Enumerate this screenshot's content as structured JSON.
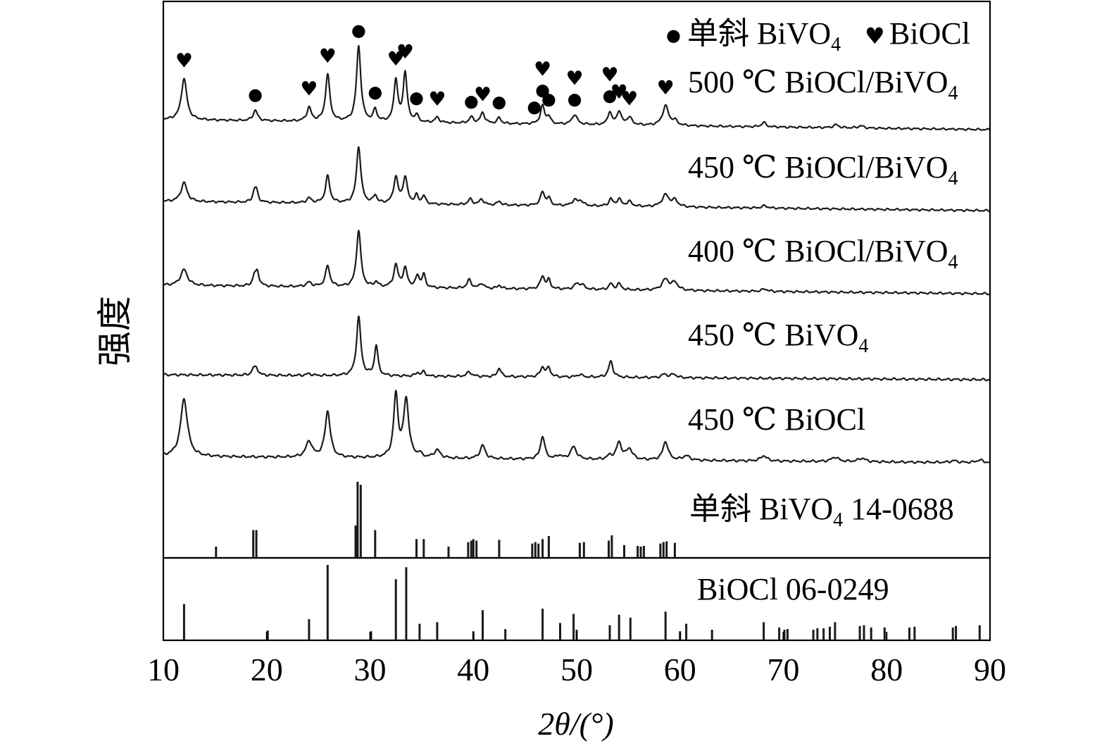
{
  "chart_data": {
    "type": "line",
    "xlabel": "2θ/(°)",
    "ylabel": "强度",
    "xlim": [
      10,
      90
    ],
    "xticks": [
      10,
      20,
      30,
      40,
      50,
      60,
      70,
      80,
      90
    ],
    "legend": {
      "position": "top-right",
      "items": [
        {
          "symbol": "●",
          "label": "单斜 BiVO₄"
        },
        {
          "symbol": "♥",
          "label": "BiOCl"
        }
      ]
    },
    "series": [
      {
        "name": "500 ℃ BiOCl/BiVO₄",
        "peaks": [
          {
            "x": 12.0,
            "y": 55,
            "w": 0.32
          },
          {
            "x": 18.9,
            "y": 14,
            "w": 0.25
          },
          {
            "x": 24.1,
            "y": 18,
            "w": 0.25
          },
          {
            "x": 25.9,
            "y": 62,
            "w": 0.25
          },
          {
            "x": 28.9,
            "y": 100,
            "w": 0.25
          },
          {
            "x": 30.5,
            "y": 16,
            "w": 0.2
          },
          {
            "x": 32.5,
            "y": 56,
            "w": 0.22
          },
          {
            "x": 33.4,
            "y": 66,
            "w": 0.22
          },
          {
            "x": 34.5,
            "y": 9,
            "w": 0.2
          },
          {
            "x": 36.5,
            "y": 7,
            "w": 0.25
          },
          {
            "x": 39.8,
            "y": 8,
            "w": 0.25
          },
          {
            "x": 40.9,
            "y": 14,
            "w": 0.25
          },
          {
            "x": 42.5,
            "y": 8,
            "w": 0.2
          },
          {
            "x": 46.7,
            "y": 24,
            "w": 0.25
          },
          {
            "x": 47.3,
            "y": 9,
            "w": 0.2
          },
          {
            "x": 49.8,
            "y": 13,
            "w": 0.3
          },
          {
            "x": 53.2,
            "y": 17,
            "w": 0.22
          },
          {
            "x": 54.1,
            "y": 18,
            "w": 0.25
          },
          {
            "x": 55.1,
            "y": 10,
            "w": 0.3
          },
          {
            "x": 58.6,
            "y": 26,
            "w": 0.35
          },
          {
            "x": 59.5,
            "y": 6,
            "w": 0.3
          },
          {
            "x": 68.1,
            "y": 6,
            "w": 0.25
          },
          {
            "x": 75.1,
            "y": 4,
            "w": 0.3
          },
          {
            "x": 77.5,
            "y": 3,
            "w": 0.3
          }
        ]
      },
      {
        "name": "450 ℃ BiOCl/BiVO₄",
        "peaks": [
          {
            "x": 12.0,
            "y": 24,
            "w": 0.35
          },
          {
            "x": 18.8,
            "y": 11,
            "w": 0.2
          },
          {
            "x": 19.0,
            "y": 13,
            "w": 0.2
          },
          {
            "x": 24.1,
            "y": 6,
            "w": 0.25
          },
          {
            "x": 25.9,
            "y": 34,
            "w": 0.25
          },
          {
            "x": 28.9,
            "y": 72,
            "w": 0.25
          },
          {
            "x": 30.5,
            "y": 10,
            "w": 0.2
          },
          {
            "x": 32.5,
            "y": 33,
            "w": 0.25
          },
          {
            "x": 33.4,
            "y": 33,
            "w": 0.25
          },
          {
            "x": 34.5,
            "y": 10,
            "w": 0.2
          },
          {
            "x": 35.2,
            "y": 10,
            "w": 0.2
          },
          {
            "x": 39.7,
            "y": 7,
            "w": 0.25
          },
          {
            "x": 40.8,
            "y": 7,
            "w": 0.25
          },
          {
            "x": 42.5,
            "y": 5,
            "w": 0.2
          },
          {
            "x": 46.7,
            "y": 17,
            "w": 0.25
          },
          {
            "x": 47.3,
            "y": 9,
            "w": 0.2
          },
          {
            "x": 49.8,
            "y": 7,
            "w": 0.3
          },
          {
            "x": 50.4,
            "y": 6,
            "w": 0.3
          },
          {
            "x": 53.3,
            "y": 9,
            "w": 0.22
          },
          {
            "x": 54.1,
            "y": 9,
            "w": 0.25
          },
          {
            "x": 55.1,
            "y": 6,
            "w": 0.3
          },
          {
            "x": 58.6,
            "y": 15,
            "w": 0.4
          },
          {
            "x": 59.5,
            "y": 8,
            "w": 0.35
          },
          {
            "x": 68.2,
            "y": 3,
            "w": 0.3
          }
        ]
      },
      {
        "name": "400 ℃ BiOCl/BiVO₄",
        "peaks": [
          {
            "x": 12.0,
            "y": 19,
            "w": 0.4
          },
          {
            "x": 18.8,
            "y": 11,
            "w": 0.2
          },
          {
            "x": 19.1,
            "y": 16,
            "w": 0.2
          },
          {
            "x": 24.1,
            "y": 5,
            "w": 0.3
          },
          {
            "x": 25.9,
            "y": 25,
            "w": 0.25
          },
          {
            "x": 28.9,
            "y": 68,
            "w": 0.25
          },
          {
            "x": 30.6,
            "y": 6,
            "w": 0.2
          },
          {
            "x": 32.5,
            "y": 26,
            "w": 0.25
          },
          {
            "x": 33.4,
            "y": 22,
            "w": 0.25
          },
          {
            "x": 34.6,
            "y": 14,
            "w": 0.2
          },
          {
            "x": 35.2,
            "y": 15,
            "w": 0.2
          },
          {
            "x": 39.6,
            "y": 10,
            "w": 0.25
          },
          {
            "x": 40.8,
            "y": 6,
            "w": 0.25
          },
          {
            "x": 42.5,
            "y": 4,
            "w": 0.2
          },
          {
            "x": 46.7,
            "y": 15,
            "w": 0.25
          },
          {
            "x": 47.3,
            "y": 10,
            "w": 0.2
          },
          {
            "x": 50.0,
            "y": 6,
            "w": 0.3
          },
          {
            "x": 50.5,
            "y": 5,
            "w": 0.3
          },
          {
            "x": 53.3,
            "y": 7,
            "w": 0.22
          },
          {
            "x": 54.1,
            "y": 7,
            "w": 0.25
          },
          {
            "x": 58.6,
            "y": 13,
            "w": 0.4
          },
          {
            "x": 59.5,
            "y": 9,
            "w": 0.35
          },
          {
            "x": 68.2,
            "y": 3,
            "w": 0.3
          }
        ]
      },
      {
        "name": "450 ℃ BiVO₄",
        "peaks": [
          {
            "x": 18.7,
            "y": 6,
            "w": 0.2
          },
          {
            "x": 19.0,
            "y": 8,
            "w": 0.2
          },
          {
            "x": 24.1,
            "y": 2,
            "w": 0.3
          },
          {
            "x": 28.9,
            "y": 66,
            "w": 0.25
          },
          {
            "x": 30.6,
            "y": 34,
            "w": 0.2
          },
          {
            "x": 34.6,
            "y": 4,
            "w": 0.2
          },
          {
            "x": 35.2,
            "y": 5,
            "w": 0.2
          },
          {
            "x": 39.6,
            "y": 5,
            "w": 0.3
          },
          {
            "x": 42.5,
            "y": 10,
            "w": 0.2
          },
          {
            "x": 46.7,
            "y": 11,
            "w": 0.25
          },
          {
            "x": 47.3,
            "y": 10,
            "w": 0.2
          },
          {
            "x": 50.3,
            "y": 3,
            "w": 0.3
          },
          {
            "x": 53.3,
            "y": 18,
            "w": 0.25
          },
          {
            "x": 58.5,
            "y": 4,
            "w": 0.3
          },
          {
            "x": 59.4,
            "y": 4,
            "w": 0.3
          }
        ]
      },
      {
        "name": "450 ℃ BiOCl",
        "peaks": [
          {
            "x": 12.0,
            "y": 65,
            "w": 0.4
          },
          {
            "x": 24.1,
            "y": 18,
            "w": 0.35
          },
          {
            "x": 25.9,
            "y": 52,
            "w": 0.3
          },
          {
            "x": 32.5,
            "y": 70,
            "w": 0.25
          },
          {
            "x": 33.5,
            "y": 65,
            "w": 0.3
          },
          {
            "x": 34.8,
            "y": 4,
            "w": 0.2
          },
          {
            "x": 36.5,
            "y": 9,
            "w": 0.35
          },
          {
            "x": 40.9,
            "y": 15,
            "w": 0.3
          },
          {
            "x": 46.7,
            "y": 26,
            "w": 0.25
          },
          {
            "x": 48.3,
            "y": 4,
            "w": 0.3
          },
          {
            "x": 49.7,
            "y": 14,
            "w": 0.35
          },
          {
            "x": 53.2,
            "y": 4,
            "w": 0.3
          },
          {
            "x": 54.1,
            "y": 19,
            "w": 0.3
          },
          {
            "x": 55.1,
            "y": 12,
            "w": 0.35
          },
          {
            "x": 58.6,
            "y": 21,
            "w": 0.3
          },
          {
            "x": 60.6,
            "y": 5,
            "w": 0.4
          },
          {
            "x": 68.1,
            "y": 6,
            "w": 0.35
          },
          {
            "x": 75.0,
            "y": 5,
            "w": 0.4
          },
          {
            "x": 77.6,
            "y": 4,
            "w": 0.4
          },
          {
            "x": 86.5,
            "y": 2,
            "w": 0.4
          },
          {
            "x": 89.0,
            "y": 3,
            "w": 0.4
          }
        ]
      },
      {
        "name": "单斜 BiVO₄ 14-0688",
        "sticks": [
          [
            15.1,
            14
          ],
          [
            18.7,
            36
          ],
          [
            19.0,
            36
          ],
          [
            28.6,
            42
          ],
          [
            28.8,
            100
          ],
          [
            29.1,
            96
          ],
          [
            30.5,
            36
          ],
          [
            34.5,
            24
          ],
          [
            35.2,
            24
          ],
          [
            37.6,
            14
          ],
          [
            39.5,
            20
          ],
          [
            39.8,
            22
          ],
          [
            40.0,
            24
          ],
          [
            40.3,
            22
          ],
          [
            42.5,
            23
          ],
          [
            45.7,
            18
          ],
          [
            46.0,
            20
          ],
          [
            46.3,
            18
          ],
          [
            46.7,
            24
          ],
          [
            47.3,
            28
          ],
          [
            50.3,
            19
          ],
          [
            50.7,
            20
          ],
          [
            53.1,
            22
          ],
          [
            53.4,
            29
          ],
          [
            54.6,
            16
          ],
          [
            55.9,
            15
          ],
          [
            56.2,
            14
          ],
          [
            56.5,
            15
          ],
          [
            58.1,
            18
          ],
          [
            58.4,
            20
          ],
          [
            58.7,
            21
          ],
          [
            59.5,
            19
          ]
        ]
      },
      {
        "name": "BiOCl 06-0249",
        "sticks": [
          [
            12.0,
            48
          ],
          [
            20.1,
            13
          ],
          [
            24.1,
            28
          ],
          [
            25.9,
            100
          ],
          [
            30.1,
            12
          ],
          [
            32.5,
            81
          ],
          [
            33.5,
            97
          ],
          [
            34.8,
            22
          ],
          [
            36.5,
            24
          ],
          [
            40.0,
            12
          ],
          [
            40.9,
            40
          ],
          [
            43.1,
            15
          ],
          [
            46.7,
            42
          ],
          [
            48.4,
            23
          ],
          [
            49.7,
            35
          ],
          [
            50.0,
            14
          ],
          [
            53.2,
            20
          ],
          [
            54.1,
            34
          ],
          [
            55.2,
            30
          ],
          [
            58.6,
            38
          ],
          [
            60.0,
            12
          ],
          [
            60.6,
            22
          ],
          [
            63.1,
            14
          ],
          [
            68.1,
            24
          ],
          [
            69.6,
            17
          ],
          [
            70.1,
            14
          ],
          [
            70.4,
            15
          ],
          [
            72.9,
            14
          ],
          [
            73.3,
            16
          ],
          [
            73.9,
            16
          ],
          [
            74.5,
            18
          ],
          [
            75.0,
            24
          ],
          [
            77.4,
            19
          ],
          [
            77.8,
            20
          ],
          [
            78.5,
            17
          ],
          [
            79.8,
            17
          ],
          [
            82.2,
            17
          ],
          [
            82.7,
            18
          ],
          [
            86.4,
            17
          ],
          [
            86.7,
            19
          ],
          [
            89.0,
            20
          ]
        ]
      }
    ],
    "annotations": {
      "series": "500 ℃ BiOCl/BiVO₄",
      "bivo4_dot_positions": [
        18.9,
        28.9,
        30.5,
        34.5,
        39.8,
        42.5,
        45.9,
        46.7,
        47.3,
        49.8,
        53.2
      ],
      "biocl_heart_positions": [
        12.0,
        24.1,
        25.9,
        32.5,
        33.4,
        36.5,
        40.9,
        46.7,
        49.8,
        53.2,
        54.1,
        55.1,
        58.6
      ]
    }
  },
  "legend_labels": {
    "monoclinic_prefix": "单斜 BiVO",
    "biocl": "BiOCl"
  },
  "series_labels": [
    {
      "text": "500 ℃ BiOCl/BiVO",
      "sub": "4"
    },
    {
      "text": "450 ℃ BiOCl/BiVO",
      "sub": "4"
    },
    {
      "text": "400 ℃ BiOCl/BiVO",
      "sub": "4"
    },
    {
      "text": "450 ℃ BiVO",
      "sub": "4"
    },
    {
      "text": "450 ℃ BiOCl",
      "sub": ""
    },
    {
      "text": "单斜 BiVO",
      "sub": "4",
      "suffix": " 14-0688"
    },
    {
      "text": "BiOCl 06-0249",
      "sub": ""
    }
  ],
  "marker_glyphs": {
    "dot": "●",
    "heart": "♥"
  }
}
